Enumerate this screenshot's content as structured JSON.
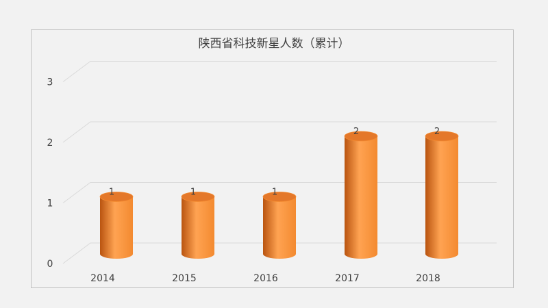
{
  "chart_data": {
    "type": "bar",
    "title": "陕西省科技新星人数（累计）",
    "categories": [
      "2014",
      "2015",
      "2016",
      "2017",
      "2018"
    ],
    "values": [
      1,
      1,
      1,
      2,
      2
    ],
    "ylim": [
      0,
      3
    ],
    "yticks": [
      "0",
      "1",
      "2",
      "3"
    ],
    "data_labels": [
      "1",
      "1",
      "1",
      "2",
      "2"
    ],
    "grid": true,
    "style": "3d-cylinder",
    "colors": {
      "bar_light": "#ffa352",
      "bar_mid": "#f38a30",
      "bar_dark": "#b95410",
      "bar_top": "#e4782a",
      "grid": "#d9d9d9",
      "text": "#404040"
    }
  }
}
